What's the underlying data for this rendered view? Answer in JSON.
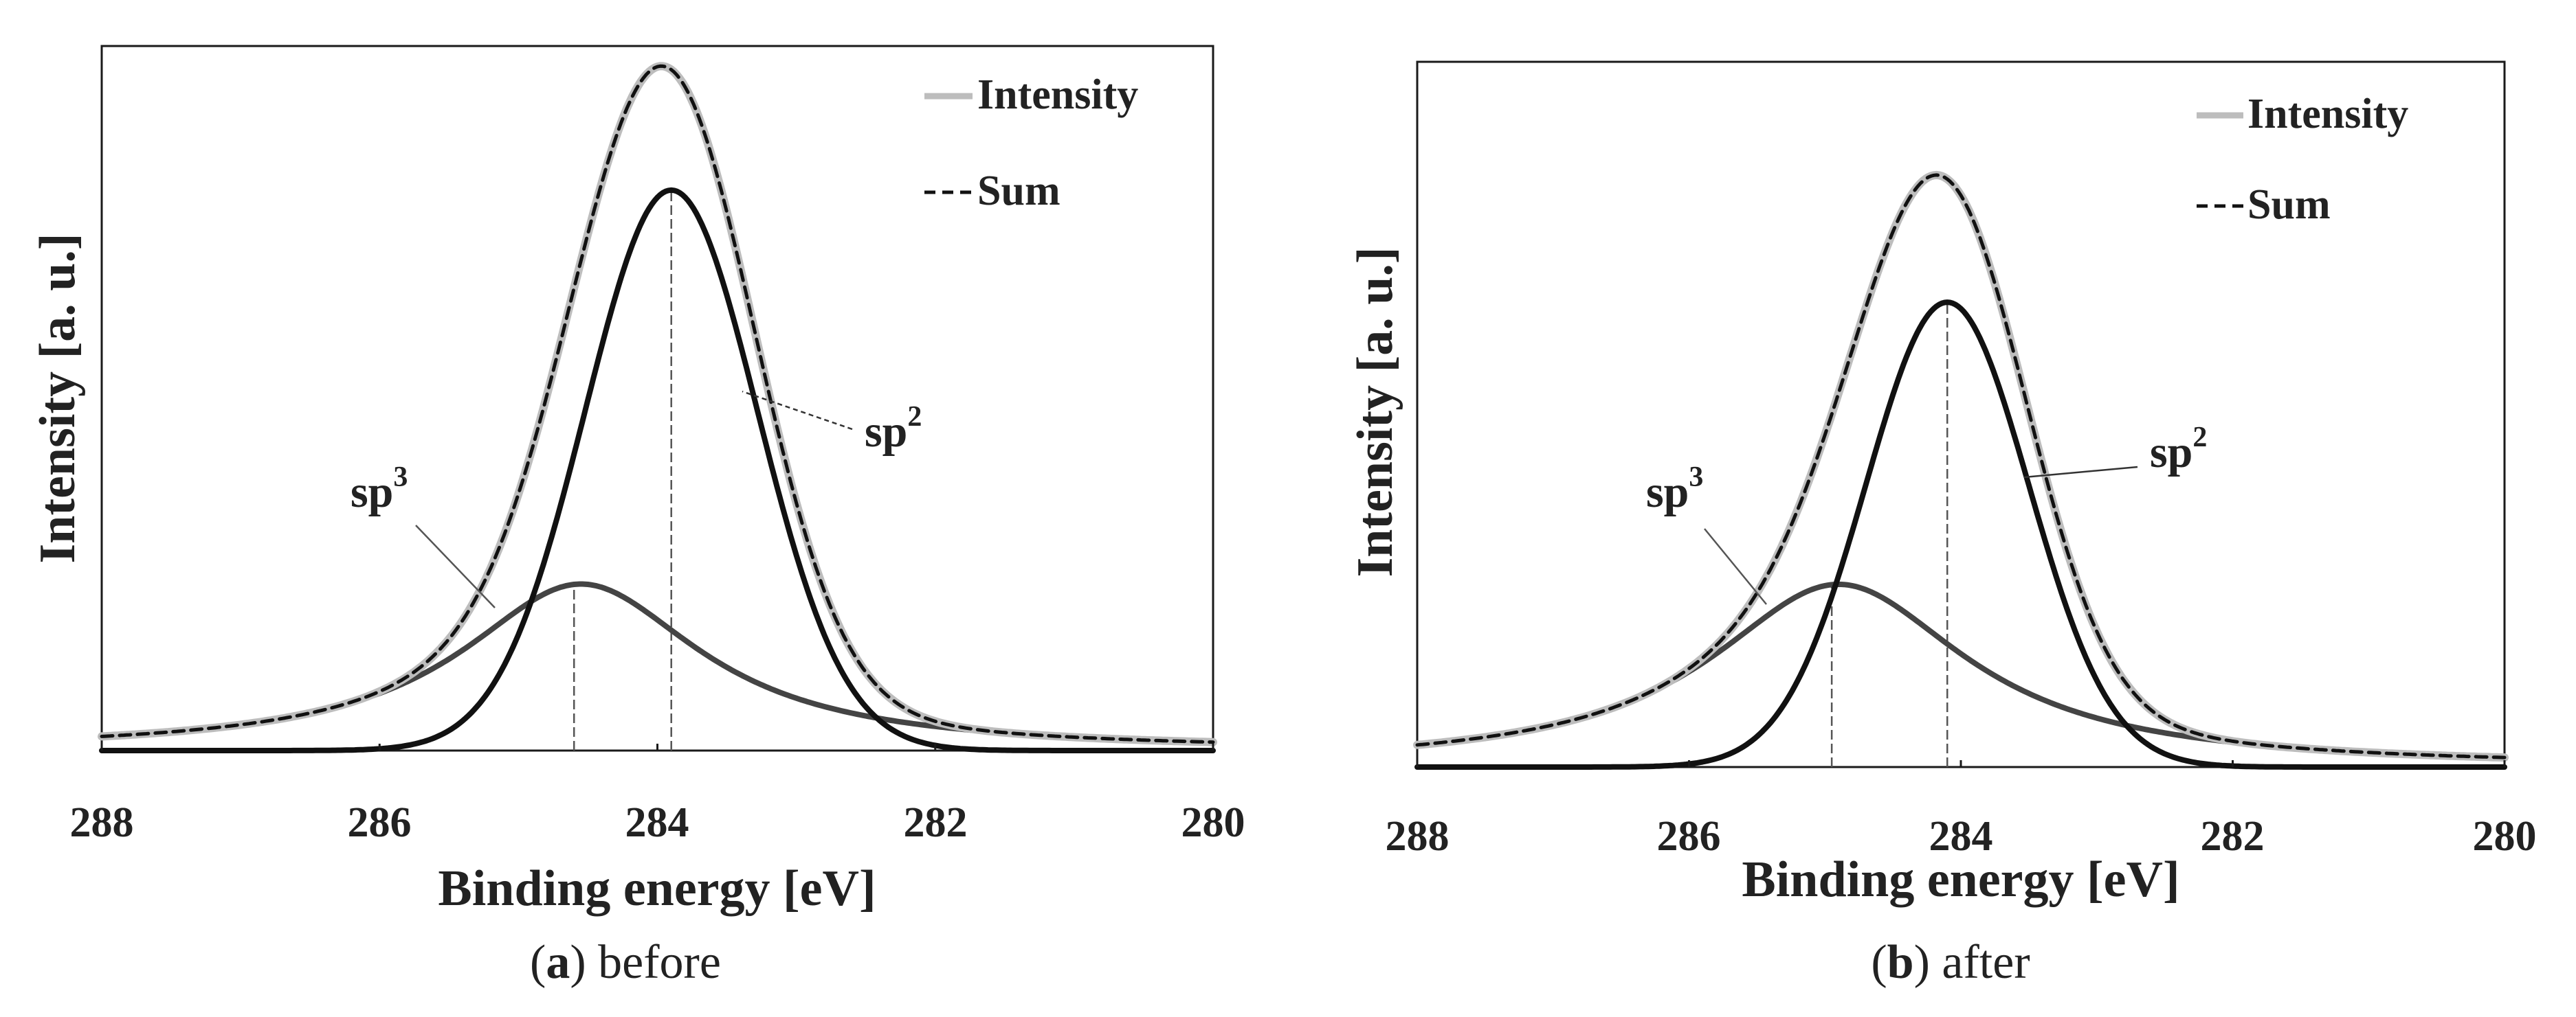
{
  "chart_data": [
    {
      "type": "line",
      "panel_letter": "a",
      "caption_text": "before",
      "xlabel": "Binding energy [eV]",
      "ylabel": "Intensity [a. u.]",
      "xlim": [
        288,
        280
      ],
      "ylim": [
        0,
        1.1
      ],
      "x_ticks": [
        "288",
        "286",
        "284",
        "282",
        "280"
      ],
      "legend": [
        "Intensity",
        "Sum"
      ],
      "legend_position": "top-right",
      "colors": {
        "intensity": "#bdbdbd",
        "sum": "#111111",
        "sp2": "#111111",
        "sp3": "#444444",
        "marker": "#555555"
      },
      "series": [
        {
          "name": "sp2",
          "center": 283.9,
          "height": 0.875,
          "sigma": 0.62,
          "shape": "gaussian"
        },
        {
          "name": "sp3",
          "center": 284.55,
          "height": 0.26,
          "sigma": 1.05,
          "shape": "lorentzian"
        },
        {
          "name": "Intensity",
          "role": "sum of sp2 and sp3",
          "style": "solid-gray"
        },
        {
          "name": "Sum",
          "role": "sum of sp2 and sp3",
          "style": "dashed-black"
        }
      ],
      "peak_markers_eV": [
        284.6,
        283.9
      ],
      "annotations": [
        {
          "label": "sp",
          "superscript": "2",
          "points_to_eV": 283.6
        },
        {
          "label": "sp",
          "superscript": "3",
          "points_to_eV": 285.3
        }
      ]
    },
    {
      "type": "line",
      "panel_letter": "b",
      "caption_text": "after",
      "xlabel": "Binding energy [eV]",
      "ylabel": "Intensity [a. u.]",
      "xlim": [
        288,
        280
      ],
      "ylim": [
        0,
        1.1
      ],
      "x_ticks": [
        "288",
        "286",
        "284",
        "282",
        "280"
      ],
      "legend": [
        "Intensity",
        "Sum"
      ],
      "legend_position": "top-right",
      "colors": {
        "intensity": "#bdbdbd",
        "sum": "#111111",
        "sp2": "#111111",
        "sp3": "#444444",
        "marker": "#555555"
      },
      "series": [
        {
          "name": "sp2",
          "center": 284.1,
          "height": 0.725,
          "sigma": 0.6,
          "shape": "gaussian"
        },
        {
          "name": "sp3",
          "center": 284.9,
          "height": 0.285,
          "sigma": 1.15,
          "shape": "lorentzian"
        },
        {
          "name": "Intensity",
          "role": "sum of sp2 and sp3",
          "style": "solid-gray"
        },
        {
          "name": "Sum",
          "role": "sum of sp2 and sp3",
          "style": "dashed-black"
        }
      ],
      "peak_markers_eV": [
        284.95,
        284.1
      ],
      "annotations": [
        {
          "label": "sp",
          "superscript": "2",
          "points_to_eV": 283.55
        },
        {
          "label": "sp",
          "superscript": "3",
          "points_to_eV": 285.6
        }
      ]
    }
  ]
}
